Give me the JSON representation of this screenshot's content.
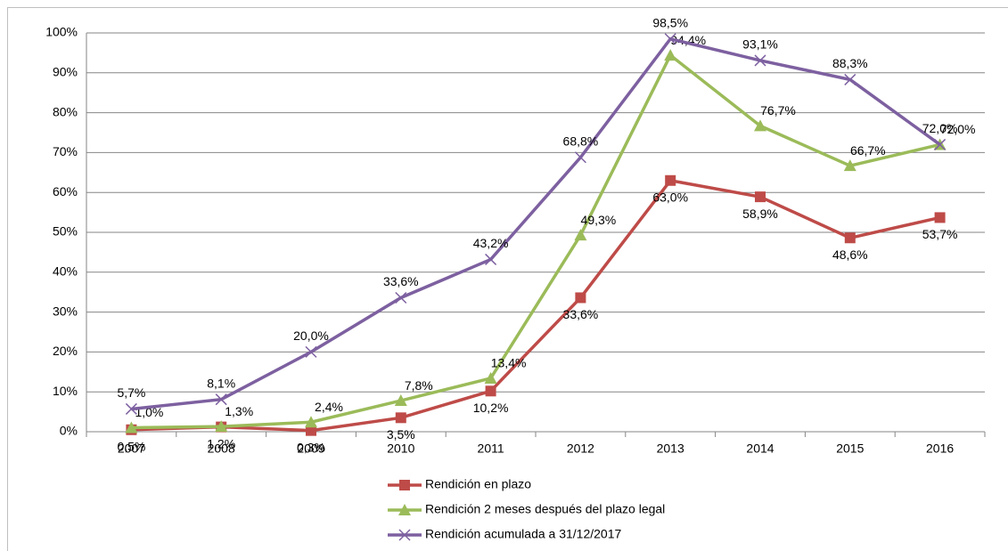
{
  "chart_data": {
    "type": "line",
    "categories": [
      "2007",
      "2008",
      "2009",
      "2010",
      "2011",
      "2012",
      "2013",
      "2014",
      "2015",
      "2016"
    ],
    "series": [
      {
        "name": "Rendición en plazo",
        "color": "#be4b48",
        "marker": "square",
        "values": [
          0.5,
          1.2,
          0.3,
          3.5,
          10.2,
          33.6,
          63.0,
          58.9,
          48.6,
          53.7
        ],
        "value_labels": [
          "0,5%",
          "1,2%",
          "0,3%",
          "3,5%",
          "10,2%",
          "33,6%",
          "63,0%",
          "58,9%",
          "48,6%",
          "53,7%"
        ]
      },
      {
        "name": "Rendición 2 meses después del plazo legal",
        "color": "#9bbb59",
        "marker": "triangle",
        "values": [
          1.0,
          1.3,
          2.4,
          7.8,
          13.4,
          49.3,
          94.4,
          76.7,
          66.7,
          72.0
        ],
        "value_labels": [
          "1,0%",
          "1,3%",
          "2,4%",
          "7,8%",
          "13,4%",
          "49,3%",
          "94,4%",
          "76,7%",
          "66,7%",
          "72,0%"
        ]
      },
      {
        "name": "Rendición acumulada a 31/12/2017",
        "color": "#7d60a0",
        "marker": "x",
        "values": [
          5.7,
          8.1,
          20.0,
          33.6,
          43.2,
          68.8,
          98.5,
          93.1,
          88.3,
          72.0
        ],
        "value_labels": [
          "5,7%",
          "8,1%",
          "20,0%",
          "33,6%",
          "43,2%",
          "68,8%",
          "98,5%",
          "93,1%",
          "88,3%",
          "72,0%"
        ]
      }
    ],
    "ylim": [
      0,
      100
    ],
    "yticks": [
      {
        "value": 0,
        "label": "0%"
      },
      {
        "value": 10,
        "label": "10%"
      },
      {
        "value": 20,
        "label": "20%"
      },
      {
        "value": 30,
        "label": "30%"
      },
      {
        "value": 40,
        "label": "40%"
      },
      {
        "value": 50,
        "label": "50%"
      },
      {
        "value": 60,
        "label": "60%"
      },
      {
        "value": 70,
        "label": "70%"
      },
      {
        "value": 80,
        "label": "80%"
      },
      {
        "value": 90,
        "label": "90%"
      },
      {
        "value": 100,
        "label": "100%"
      }
    ],
    "grid": true,
    "legend": "bottom"
  }
}
